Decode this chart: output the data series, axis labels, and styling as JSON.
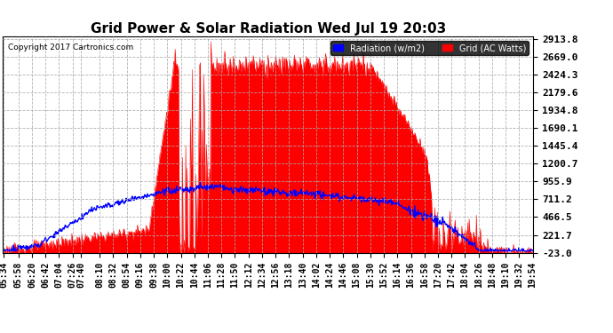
{
  "title": "Grid Power & Solar Radiation Wed Jul 19 20:03",
  "copyright": "Copyright 2017 Cartronics.com",
  "legend_radiation": "Radiation (w/m2)",
  "legend_grid": "Grid (AC Watts)",
  "yticks": [
    2913.8,
    2669.0,
    2424.3,
    2179.6,
    1934.8,
    1690.1,
    1445.4,
    1200.7,
    955.9,
    711.2,
    466.5,
    221.7,
    -23.0
  ],
  "xtick_labels": [
    "05:34",
    "05:58",
    "06:20",
    "06:42",
    "07:04",
    "07:26",
    "07:40",
    "08:10",
    "08:32",
    "08:54",
    "09:16",
    "09:38",
    "10:00",
    "10:22",
    "10:44",
    "11:06",
    "11:28",
    "11:50",
    "12:12",
    "12:34",
    "12:56",
    "13:18",
    "13:40",
    "14:02",
    "14:24",
    "14:46",
    "15:08",
    "15:30",
    "15:52",
    "16:14",
    "16:36",
    "16:58",
    "17:20",
    "17:42",
    "18:04",
    "18:26",
    "18:48",
    "19:10",
    "19:32",
    "19:54"
  ],
  "ymin": -23.0,
  "ymax": 2913.8,
  "bg_color": "#ffffff",
  "plot_bg_color": "#ffffff",
  "grid_color": "#aaaaaa",
  "radiation_color": "#0000ff",
  "grid_power_color": "#ff0000",
  "title_fontsize": 11,
  "tick_fontsize": 7,
  "ytick_fontsize": 8
}
